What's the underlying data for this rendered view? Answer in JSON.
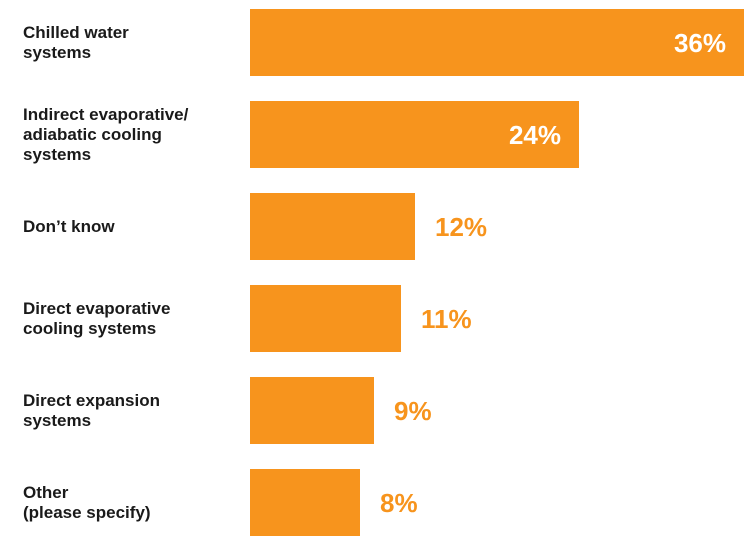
{
  "chart_data": {
    "type": "bar",
    "orientation": "horizontal",
    "categories": [
      "Chilled water\nsystems",
      "Indirect evaporative/\nadiabatic cooling\nsystems",
      "Don’t know",
      "Direct evaporative\ncooling systems",
      "Direct expansion\nsystems",
      "Other\n(please specify)"
    ],
    "values": [
      36,
      24,
      12,
      11,
      9,
      8
    ],
    "value_labels": [
      "36%",
      "24%",
      "12%",
      "11%",
      "9%",
      "8%"
    ],
    "unit": "%",
    "xlim": [
      0,
      36
    ],
    "grid": false,
    "legend": "none"
  },
  "colors": {
    "bar": "#F7941D",
    "value_inside": "#ffffff",
    "value_outside": "#F7941D",
    "category_text": "#1a1a1a"
  }
}
